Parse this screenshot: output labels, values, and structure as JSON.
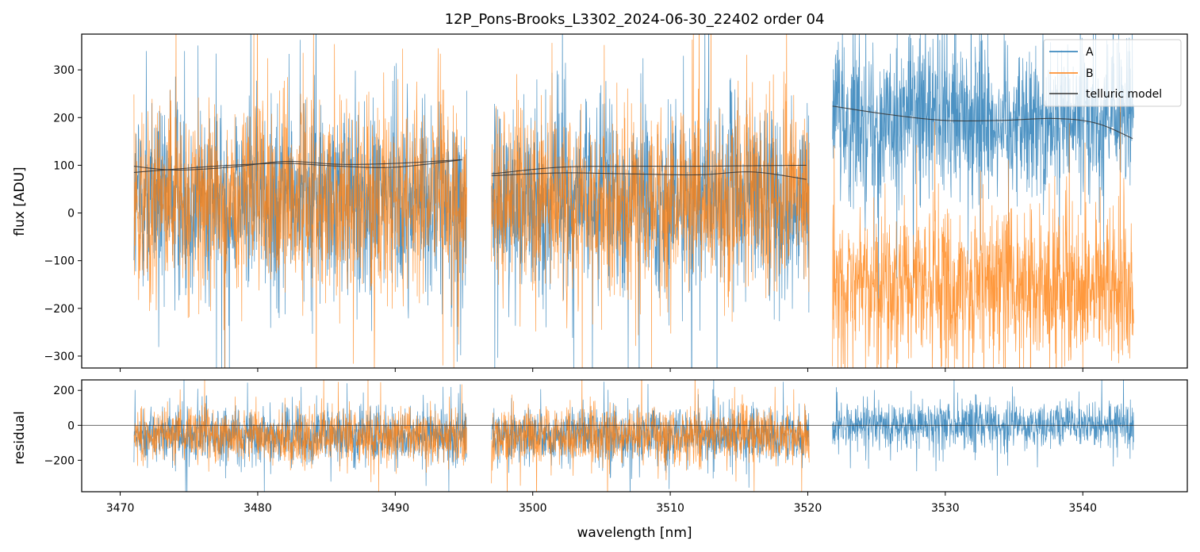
{
  "title": "12P_Pons-Brooks_L3302_2024-06-30_22402  order 04",
  "colors": {
    "A": "#1f77b4",
    "B": "#ff7f0e",
    "model": "#333333"
  },
  "chart_data": [
    {
      "type": "line",
      "panel": "flux",
      "ylabel": "flux [ADU]",
      "xlim": [
        3467.2,
        3547.6
      ],
      "ylim": [
        -325,
        375
      ],
      "yticks": [
        -300,
        -200,
        -100,
        0,
        100,
        200,
        300
      ],
      "yticklabels": [
        "−300",
        "−200",
        "−100",
        "0",
        "100",
        "200",
        "300"
      ],
      "legend": {
        "position": "top-right",
        "entries": [
          "A",
          "B",
          "telluric model"
        ]
      },
      "segments": [
        {
          "x_range": [
            3471.0,
            3495.2
          ],
          "A_mean": 30,
          "B_mean": 30,
          "noise_std": 95,
          "telluric_model_A": {
            "x": [
              3471,
              3474,
              3478,
              3482,
              3486,
              3490,
              3495
            ],
            "y": [
              85,
              92,
              100,
              104,
              98,
              96,
              112
            ]
          },
          "telluric_model_B": {
            "x": [
              3471,
              3474,
              3478,
              3482,
              3486,
              3490,
              3495
            ],
            "y": [
              98,
              90,
              96,
              108,
              102,
              104,
              112
            ]
          }
        },
        {
          "x_range": [
            3497.0,
            3520.1
          ],
          "A_mean": 30,
          "B_mean": 30,
          "noise_std": 95,
          "telluric_model_A": {
            "x": [
              3497,
              3502,
              3507,
              3512,
              3516,
              3520
            ],
            "y": [
              78,
              84,
              82,
              80,
              86,
              70
            ]
          },
          "telluric_model_B": {
            "x": [
              3497,
              3502,
              3507,
              3512,
              3516,
              3520
            ],
            "y": [
              82,
              96,
              98,
              98,
              99,
              100
            ]
          }
        },
        {
          "x_range": [
            3521.8,
            3543.7
          ],
          "A_mean": 195,
          "B_mean": -150,
          "noise_std": 80,
          "telluric_model_A": {
            "x": [
              3521.8,
              3526,
              3530,
              3534,
              3538,
              3541,
              3543.7
            ],
            "y": [
              224,
              206,
              194,
              194,
              198,
              188,
              155
            ]
          }
        }
      ]
    },
    {
      "type": "line",
      "panel": "residual",
      "ylabel": "residual",
      "xlabel": "wavelength [nm]",
      "xlim": [
        3467.2,
        3547.6
      ],
      "ylim": [
        -380,
        260
      ],
      "xticks": [
        3470,
        3480,
        3490,
        3500,
        3510,
        3520,
        3530,
        3540
      ],
      "xticklabels": [
        "3470",
        "3480",
        "3490",
        "3500",
        "3510",
        "3520",
        "3530",
        "3540"
      ],
      "yticks": [
        -200,
        0,
        200
      ],
      "yticklabels": [
        "−200",
        "0",
        "200"
      ],
      "zero_line": true,
      "segments": [
        {
          "x_range": [
            3471.0,
            3495.2
          ],
          "A_mean": -60,
          "B_mean": -60,
          "noise_std": 75
        },
        {
          "x_range": [
            3497.0,
            3520.1
          ],
          "A_mean": -60,
          "B_mean": -60,
          "noise_std": 75
        },
        {
          "x_range": [
            3521.8,
            3543.7
          ],
          "A_mean": 0,
          "noise_std": 65
        }
      ]
    }
  ]
}
